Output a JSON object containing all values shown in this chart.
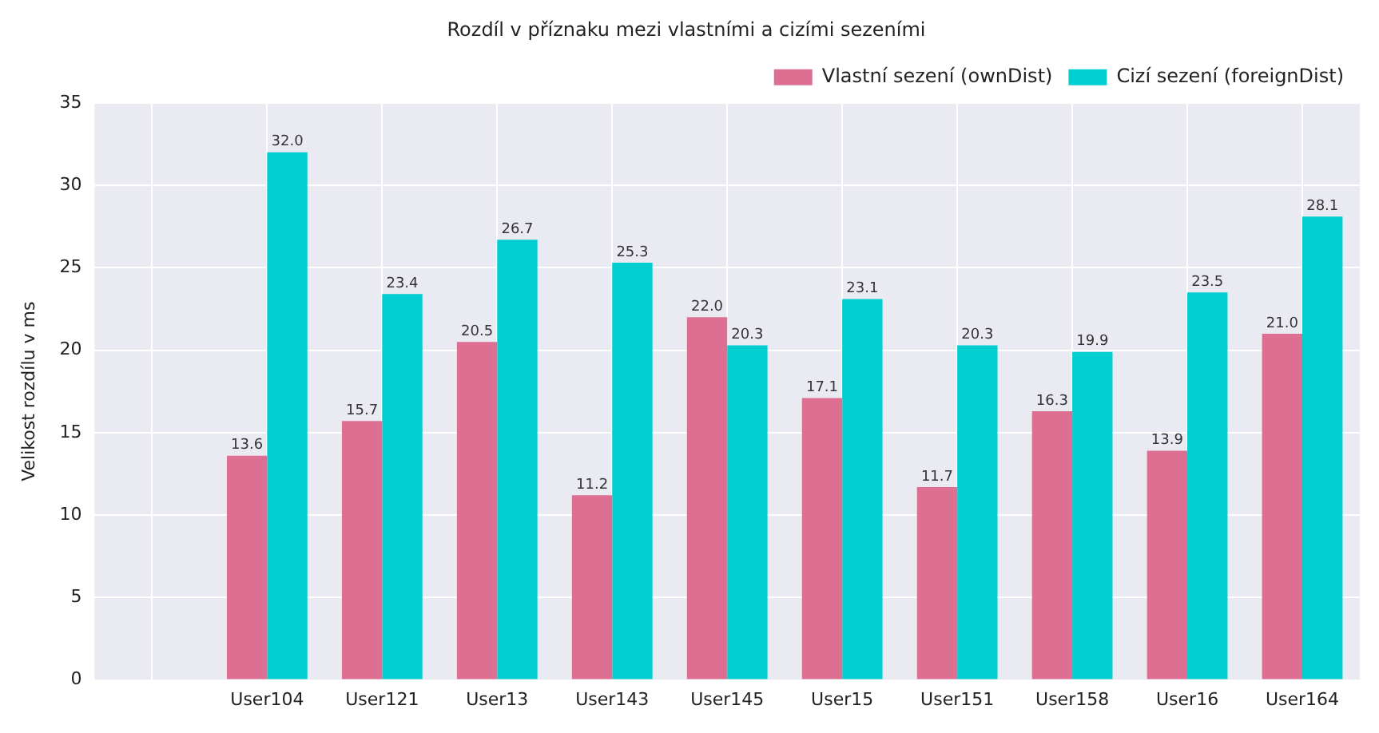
{
  "chart_data": {
    "type": "bar",
    "title": "Rozdíl v příznaku mezi vlastními a cizími sezeními",
    "ylabel": "Velikost rozdílu v ms",
    "categories": [
      null,
      "User104",
      "User121",
      "User13",
      "User143",
      "User145",
      "User15",
      "User151",
      "User158",
      "User16",
      "User164"
    ],
    "series": [
      {
        "name": "Vlastní sezení (ownDist)",
        "color": "#dd7092",
        "values": [
          null,
          13.6,
          15.7,
          20.5,
          11.2,
          22.0,
          17.1,
          11.7,
          16.3,
          13.9,
          21.0
        ],
        "value_labels": [
          null,
          "13.6",
          "15.7",
          "20.5",
          "11.2",
          "22.0",
          "17.1",
          "11.7",
          "16.3",
          "13.9",
          "21.0"
        ]
      },
      {
        "name": "Cizí sezení (foreignDist)",
        "color": "#00ced1",
        "values": [
          null,
          32.0,
          23.4,
          26.7,
          25.3,
          20.3,
          23.1,
          20.3,
          19.9,
          23.5,
          28.1
        ],
        "value_labels": [
          null,
          "32.0",
          "23.4",
          "26.7",
          "25.3",
          "20.3",
          "23.1",
          "20.3",
          "19.9",
          "23.5",
          "28.1"
        ]
      }
    ],
    "ylim": [
      0,
      35
    ],
    "yticks": [
      0,
      5,
      10,
      15,
      20,
      25,
      30,
      35
    ],
    "grid": true,
    "legend": "top right"
  }
}
